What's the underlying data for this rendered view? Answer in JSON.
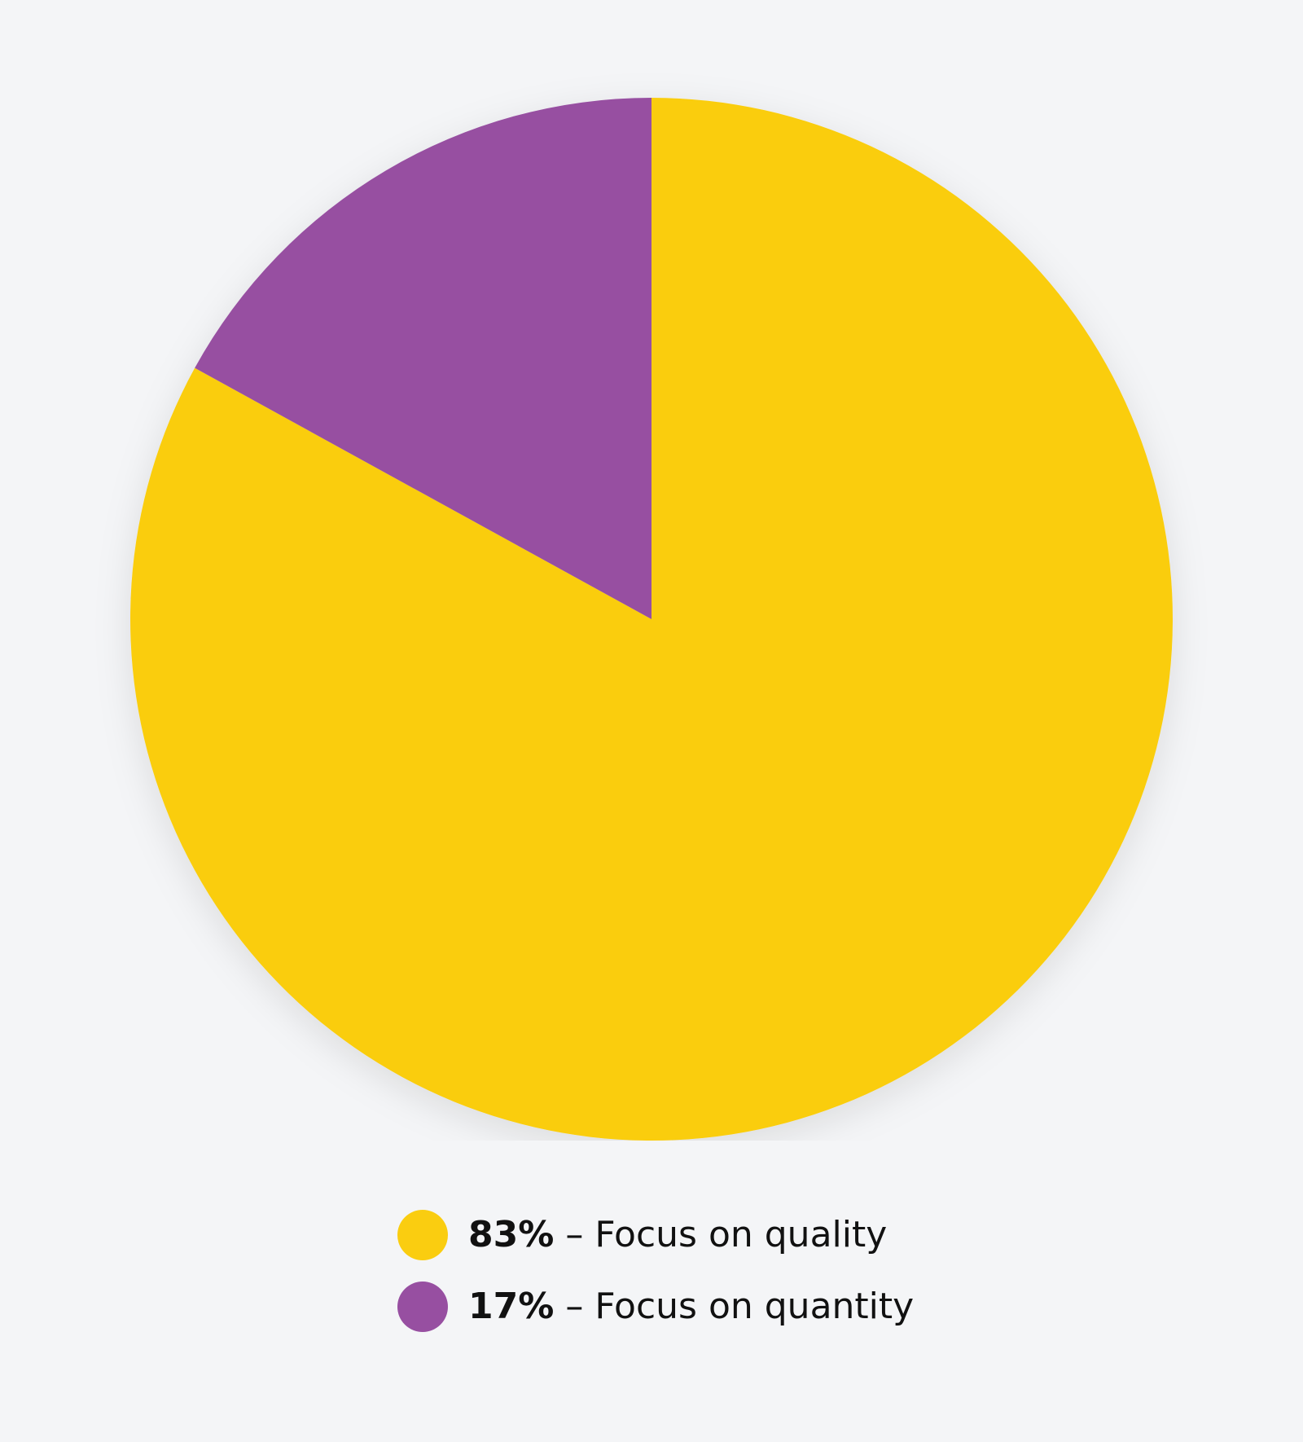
{
  "chart_data": {
    "type": "pie",
    "title": "",
    "slices": [
      {
        "label": "Focus on quality",
        "value": 83,
        "display_value": "83%",
        "color": "#facd10"
      },
      {
        "label": "Focus on quantity",
        "value": 17,
        "display_value": "17%",
        "color": "#974fa1"
      }
    ],
    "legend_placement": "bottom",
    "separator": " – "
  }
}
